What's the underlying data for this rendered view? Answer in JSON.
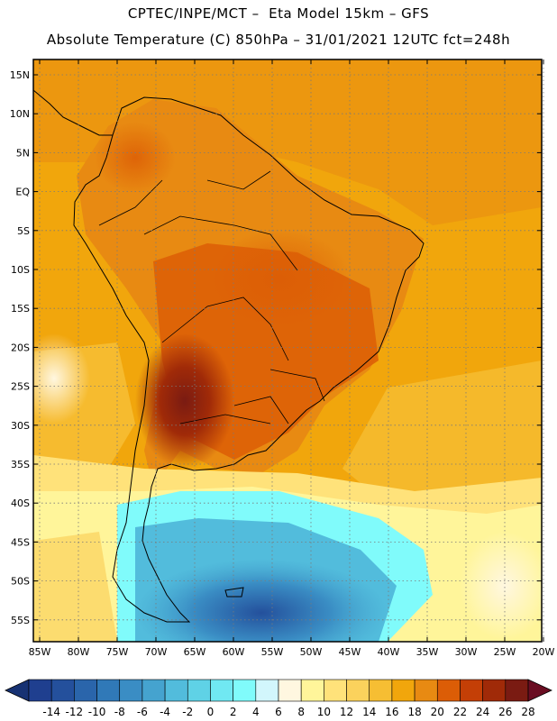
{
  "header": {
    "line1": "CPTEC/INPE/MCT –  Eta Model 15km – GFS",
    "line2": "Absolute Temperature (C) 850hPa – 31/01/2021 12UTC fct=248h"
  },
  "map": {
    "lat_labels": [
      "15N",
      "10N",
      "5N",
      "EQ",
      "5S",
      "10S",
      "15S",
      "20S",
      "25S",
      "30S",
      "35S",
      "40S",
      "45S",
      "50S",
      "55S"
    ],
    "lon_labels": [
      "85W",
      "80W",
      "75W",
      "70W",
      "65W",
      "60W",
      "55W",
      "50W",
      "45W",
      "40W",
      "35W",
      "30W",
      "25W",
      "20W"
    ],
    "gridlines": "dotted"
  },
  "colorbar": {
    "labels": [
      "-14",
      "-12",
      "-10",
      "-8",
      "-6",
      "-4",
      "-2",
      "0",
      "2",
      "4",
      "6",
      "8",
      "10",
      "12",
      "14",
      "16",
      "18",
      "20",
      "22",
      "24",
      "26",
      "28"
    ],
    "colors": [
      "#1f3f8f",
      "#24509c",
      "#2a65ab",
      "#3079b8",
      "#3a8dc4",
      "#45a3cf",
      "#52bcdc",
      "#5fd2e6",
      "#70e8f2",
      "#80fbfb",
      "#d2f6fc",
      "#fff7e0",
      "#fff59a",
      "#ffe27a",
      "#fbd25c",
      "#f6be33",
      "#f1a60c",
      "#e88a12",
      "#dc5d06",
      "#c43f06",
      "#a02a08",
      "#7a1b12"
    ],
    "under_color": "#173273",
    "over_color": "#6a0d22"
  }
}
